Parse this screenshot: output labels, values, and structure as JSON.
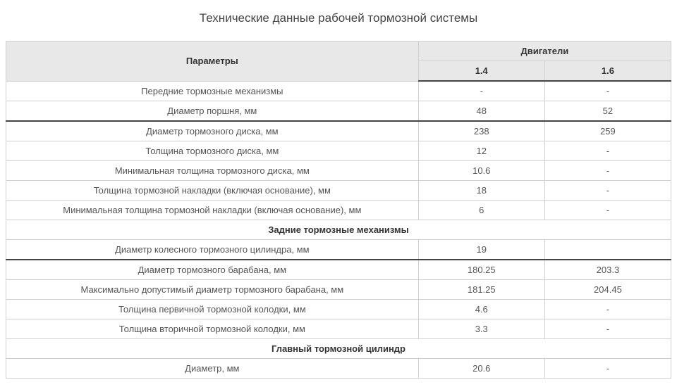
{
  "title": "Технические данные рабочей тормозной системы",
  "headers": {
    "param": "Параметры",
    "engines": "Двигатели",
    "e14": "1.4",
    "e16": "1.6"
  },
  "rows": [
    {
      "type": "data",
      "label": "Передние тормозные механизмы",
      "v14": "-",
      "v16": "-",
      "thick": false
    },
    {
      "type": "data",
      "label": "Диаметр поршня, мм",
      "v14": "48",
      "v16": "52",
      "thick": false
    },
    {
      "type": "data",
      "label": "Диаметр тормозного диска, мм",
      "v14": "238",
      "v16": "259",
      "thick": true
    },
    {
      "type": "data",
      "label": "Толщина тормозного диска, мм",
      "v14": "12",
      "v16": "-",
      "thick": false
    },
    {
      "type": "data",
      "label": "Минимальная толщина тормозного диска, мм",
      "v14": "10.6",
      "v16": "-",
      "thick": false
    },
    {
      "type": "data",
      "label": "Толщина тормозной накладки (включая основание), мм",
      "v14": "18",
      "v16": "-",
      "thick": false
    },
    {
      "type": "data",
      "label": "Минимальная толщина тормозной накладки (включая основание), мм",
      "v14": "6",
      "v16": "-",
      "thick": false
    },
    {
      "type": "section",
      "label": "Задние тормозные механизмы"
    },
    {
      "type": "data",
      "label": "Диаметр колесного тормозного цилиндра, мм",
      "v14": "19",
      "v16": "",
      "thick": false
    },
    {
      "type": "data",
      "label": "Диаметр тормозного барабана, мм",
      "v14": "180.25",
      "v16": "203.3",
      "thick": true
    },
    {
      "type": "data",
      "label": "Максимально допустимый диаметр тормозного барабана, мм",
      "v14": "181.25",
      "v16": "204.45",
      "thick": false
    },
    {
      "type": "data",
      "label": "Толщина первичной тормозной колодки, мм",
      "v14": "4.6",
      "v16": "-",
      "thick": false
    },
    {
      "type": "data",
      "label": "Толщина вторичной тормозной колодки, мм",
      "v14": "3.3",
      "v16": "-",
      "thick": false
    },
    {
      "type": "section",
      "label": "Главный тормозной цилиндр"
    },
    {
      "type": "data",
      "label": "Диаметр, мм",
      "v14": "20.6",
      "v16": "-",
      "thick": false
    }
  ],
  "style": {
    "header_bg": "#e8e8e8",
    "border_color": "#d0d0d0",
    "thick_border_color": "#444444",
    "text_color": "#555555",
    "title_fontsize": 17,
    "body_fontsize": 13
  }
}
